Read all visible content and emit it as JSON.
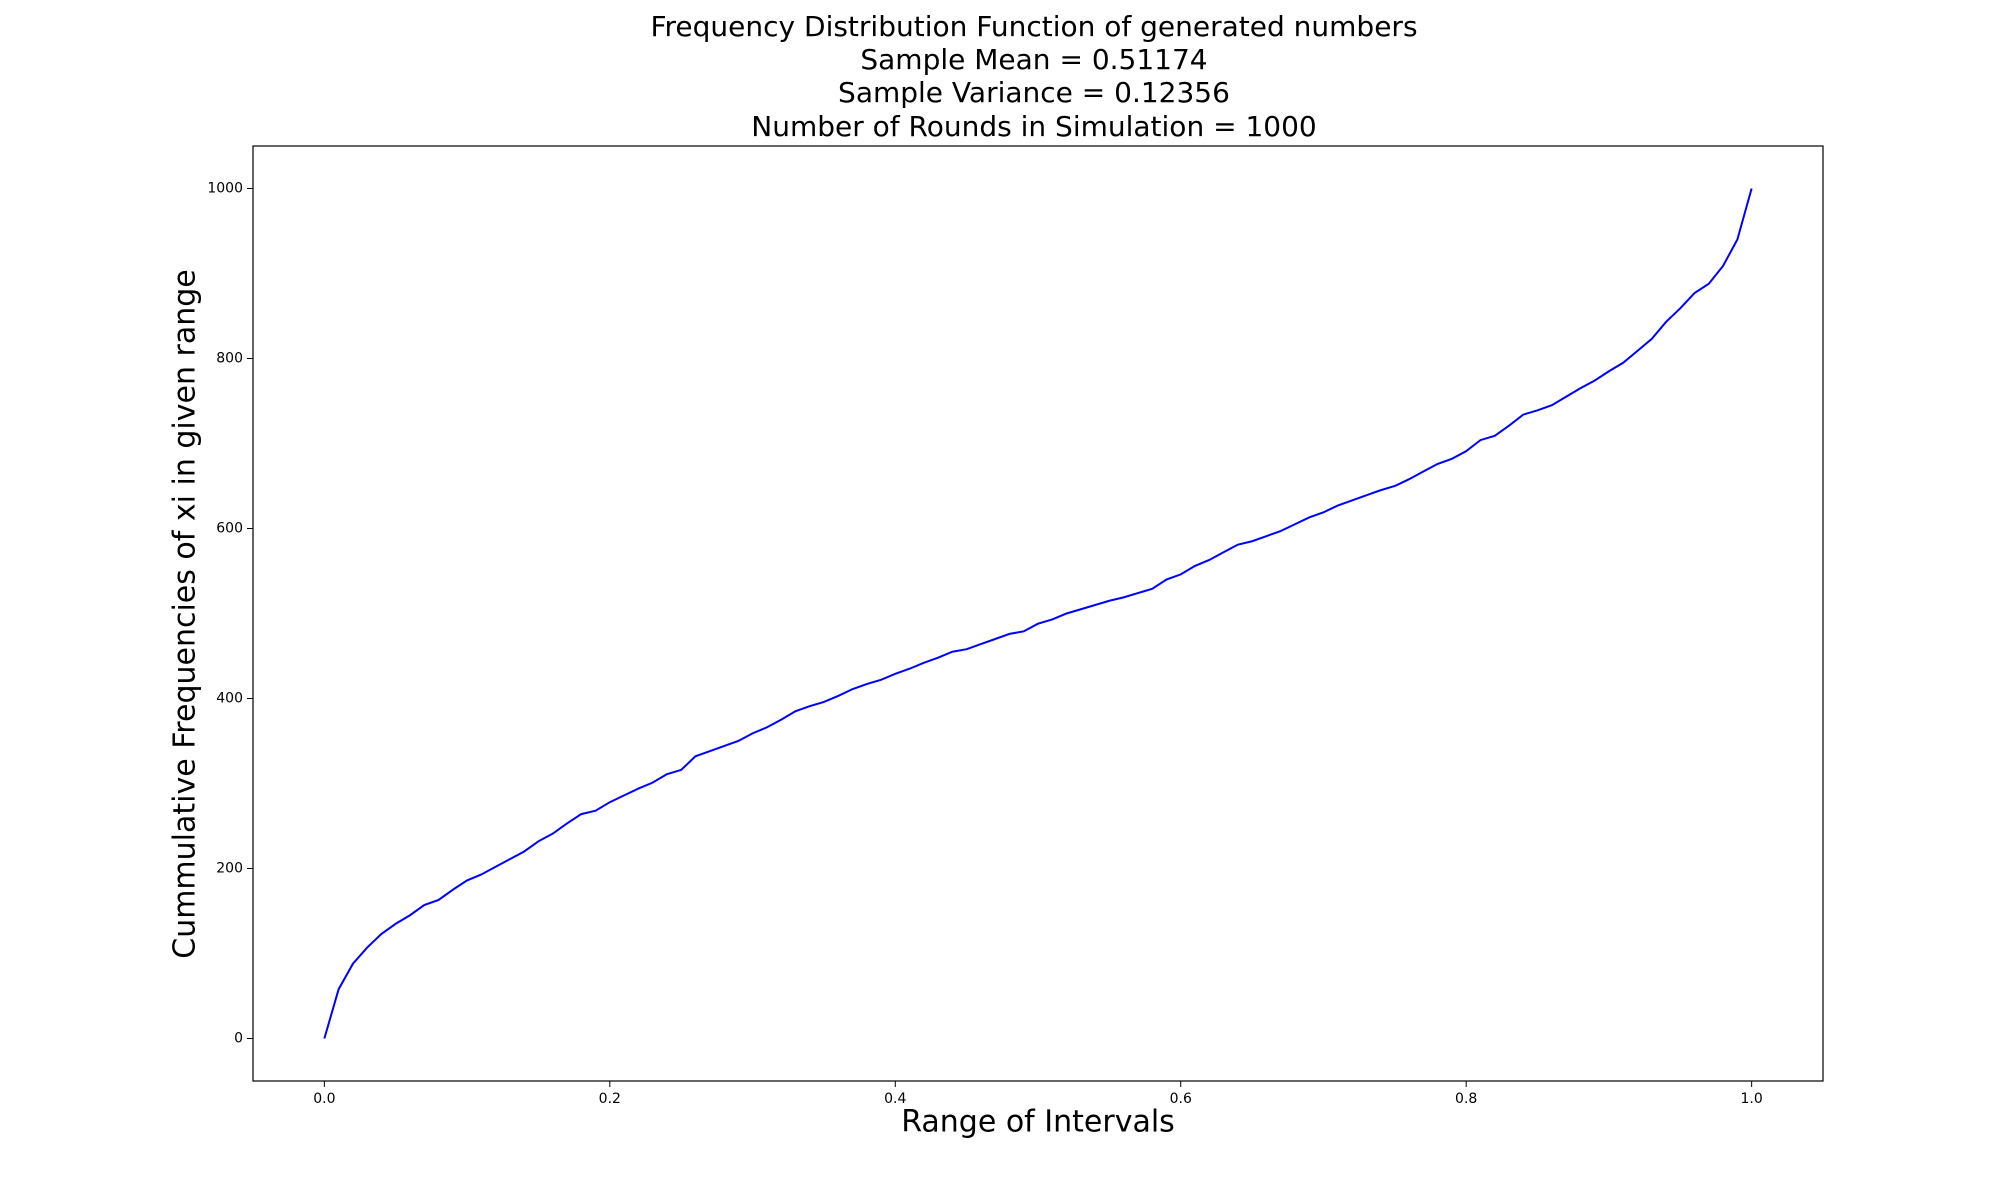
{
  "chart_data": {
    "type": "line",
    "title": "Frequency Distribution Function of generated numbers",
    "subtitles": [
      "Sample Mean = 0.51174",
      "Sample Variance = 0.12356",
      "Number of Rounds in Simulation = 1000"
    ],
    "x_label": "Range of Intervals",
    "y_label": "Cummulative Frequencies of xi in given range",
    "x": [
      0,
      0.01,
      0.02,
      0.03,
      0.04,
      0.05,
      0.06,
      0.07,
      0.08,
      0.09,
      0.1,
      0.11,
      0.12,
      0.13,
      0.14,
      0.15,
      0.16,
      0.17,
      0.18,
      0.19,
      0.2,
      0.21,
      0.22,
      0.23,
      0.24,
      0.25,
      0.26,
      0.27,
      0.28,
      0.29,
      0.3,
      0.31,
      0.32,
      0.33,
      0.34,
      0.35,
      0.36,
      0.37,
      0.38,
      0.39,
      0.4,
      0.41,
      0.42,
      0.43,
      0.44,
      0.45,
      0.46,
      0.47,
      0.48,
      0.49,
      0.5,
      0.51,
      0.52,
      0.53,
      0.54,
      0.55,
      0.56,
      0.57,
      0.58,
      0.59,
      0.6,
      0.61,
      0.62,
      0.63,
      0.64,
      0.65,
      0.66,
      0.67,
      0.68,
      0.69,
      0.7,
      0.71,
      0.72,
      0.73,
      0.74,
      0.75,
      0.76,
      0.77,
      0.78,
      0.79,
      0.8,
      0.81,
      0.82,
      0.83,
      0.84,
      0.85,
      0.86,
      0.87,
      0.88,
      0.89,
      0.9,
      0.91,
      0.92,
      0.93,
      0.94,
      0.95,
      0.96,
      0.97,
      0.98,
      0.99,
      1
    ],
    "series": [
      {
        "color": "#0000ff",
        "values": [
          0,
          58,
          88,
          107,
          123,
          135,
          145,
          157,
          163,
          175,
          186,
          193,
          202,
          211,
          220,
          232,
          241,
          253,
          264,
          268,
          278,
          286,
          294,
          301,
          311,
          316,
          332,
          338,
          344,
          350,
          359,
          366,
          375,
          385,
          391,
          396,
          403,
          411,
          417,
          422,
          429,
          435,
          442,
          448,
          455,
          458,
          464,
          470,
          476,
          479,
          488,
          493,
          500,
          505,
          510,
          515,
          519,
          524,
          529,
          540,
          546,
          556,
          563,
          572,
          581,
          585,
          591,
          597,
          605,
          613,
          619,
          627,
          633,
          639,
          645,
          650,
          658,
          667,
          676,
          682,
          691,
          704,
          709,
          721,
          734,
          739,
          745,
          755,
          765,
          774,
          785,
          795,
          809,
          823,
          843,
          859,
          877,
          888,
          909,
          940,
          1000
        ]
      }
    ],
    "xlim": [
      -0.05,
      1.05
    ],
    "ylim": [
      -50,
      1050
    ],
    "xticks": [
      {
        "value": 0,
        "label": "0.0"
      },
      0.2,
      0.4,
      0.6,
      0.8,
      {
        "value": 1,
        "label": "1.0"
      }
    ],
    "yticks": [
      0,
      200,
      400,
      600,
      800,
      1000
    ]
  }
}
